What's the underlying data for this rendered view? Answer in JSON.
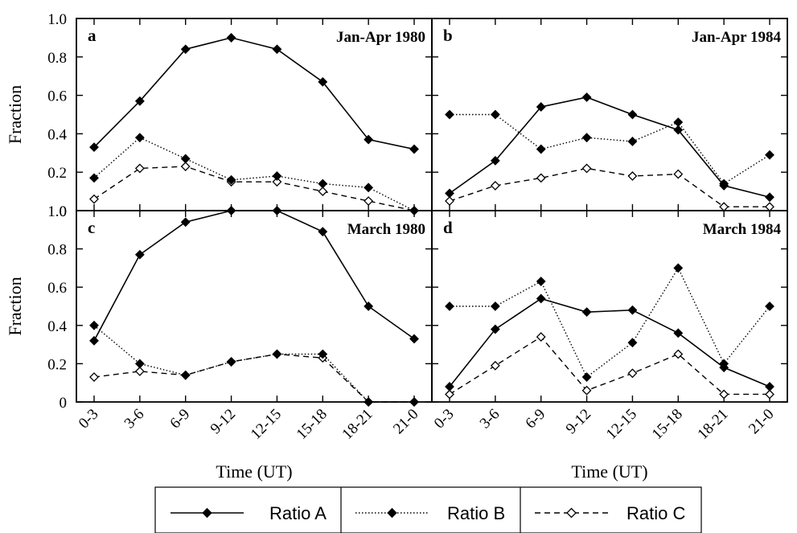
{
  "chart_data": [
    {
      "type": "line",
      "panel": "a",
      "title": "Jan-Apr  1980",
      "categories": [
        "0-3",
        "3-6",
        "6-9",
        "9-12",
        "12-15",
        "15-18",
        "18-21",
        "21-0"
      ],
      "ylabel": "Fraction",
      "xlabel": "",
      "ylim": [
        0,
        1.0
      ],
      "series": [
        {
          "name": "Ratio A",
          "values": [
            0.33,
            0.57,
            0.84,
            0.9,
            0.84,
            0.67,
            0.37,
            0.32
          ]
        },
        {
          "name": "Ratio B",
          "values": [
            0.17,
            0.38,
            0.27,
            0.16,
            0.18,
            0.14,
            0.12,
            0.0
          ]
        },
        {
          "name": "Ratio C",
          "values": [
            0.06,
            0.22,
            0.23,
            0.15,
            0.15,
            0.1,
            0.05,
            0.0
          ]
        }
      ]
    },
    {
      "type": "line",
      "panel": "b",
      "title": "Jan-Apr  1984",
      "categories": [
        "0-3",
        "3-6",
        "6-9",
        "9-12",
        "12-15",
        "15-18",
        "18-21",
        "21-0"
      ],
      "ylabel": "",
      "xlabel": "",
      "ylim": [
        0,
        1.0
      ],
      "series": [
        {
          "name": "Ratio A",
          "values": [
            0.09,
            0.26,
            0.54,
            0.59,
            0.5,
            0.42,
            0.13,
            0.07
          ]
        },
        {
          "name": "Ratio B",
          "values": [
            0.5,
            0.5,
            0.32,
            0.38,
            0.36,
            0.46,
            0.14,
            0.29
          ]
        },
        {
          "name": "Ratio C",
          "values": [
            0.05,
            0.13,
            0.17,
            0.22,
            0.18,
            0.19,
            0.02,
            0.02
          ]
        }
      ]
    },
    {
      "type": "line",
      "panel": "c",
      "title": "March  1980",
      "categories": [
        "0-3",
        "3-6",
        "6-9",
        "9-12",
        "12-15",
        "15-18",
        "18-21",
        "21-0"
      ],
      "ylabel": "Fraction",
      "xlabel": "Time (UT)",
      "ylim": [
        0,
        1.0
      ],
      "series": [
        {
          "name": "Ratio A",
          "values": [
            0.32,
            0.77,
            0.94,
            1.0,
            1.0,
            0.89,
            0.5,
            0.33
          ]
        },
        {
          "name": "Ratio B",
          "values": [
            0.4,
            0.2,
            0.14,
            0.21,
            0.25,
            0.25,
            0.0,
            0.0
          ]
        },
        {
          "name": "Ratio C",
          "values": [
            0.13,
            0.16,
            0.14,
            0.21,
            0.25,
            0.23,
            0.0,
            0.0
          ]
        }
      ]
    },
    {
      "type": "line",
      "panel": "d",
      "title": "March  1984",
      "categories": [
        "0-3",
        "3-6",
        "6-9",
        "9-12",
        "12-15",
        "15-18",
        "18-21",
        "21-0"
      ],
      "ylabel": "",
      "xlabel": "Time (UT)",
      "ylim": [
        0,
        1.0
      ],
      "series": [
        {
          "name": "Ratio A",
          "values": [
            0.08,
            0.38,
            0.54,
            0.47,
            0.48,
            0.36,
            0.18,
            0.08
          ]
        },
        {
          "name": "Ratio B",
          "values": [
            0.5,
            0.5,
            0.63,
            0.13,
            0.31,
            0.7,
            0.2,
            0.5
          ]
        },
        {
          "name": "Ratio C",
          "values": [
            0.04,
            0.19,
            0.34,
            0.06,
            0.15,
            0.25,
            0.04,
            0.04
          ]
        }
      ]
    }
  ],
  "y_ticks": [
    "0",
    "0.2",
    "0.4",
    "0.6",
    "0.8",
    "1.0"
  ],
  "legend": {
    "items": [
      "Ratio A",
      "Ratio B",
      "Ratio C"
    ]
  }
}
